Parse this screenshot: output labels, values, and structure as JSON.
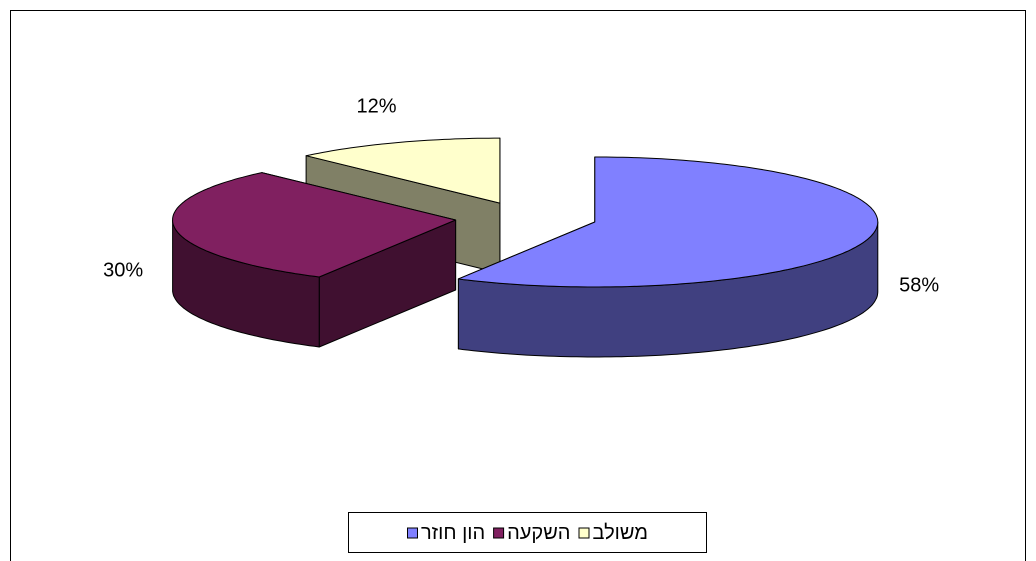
{
  "chart_data": {
    "type": "pie",
    "categories": [
      "הון חוזר",
      "השקעה",
      "משולב"
    ],
    "values": [
      58,
      30,
      12
    ],
    "value_labels": [
      "58%",
      "30%",
      "12%"
    ],
    "colors": [
      "#8080ff",
      "#802060",
      "#ffffcc"
    ],
    "legend": "bottom"
  }
}
